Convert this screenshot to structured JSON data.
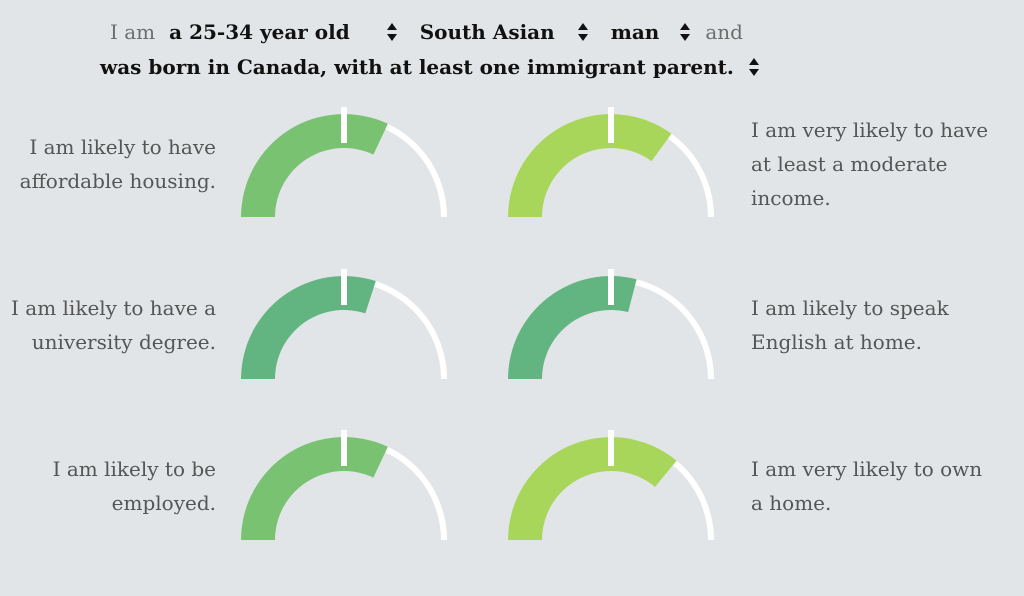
{
  "header": {
    "prefix": "I am",
    "age_select": "a 25-34 year old",
    "ethnicity_select": "South Asian",
    "gender_select": "man",
    "conjunction": "and",
    "birth_select": "was born in Canada, with at least one immigrant parent."
  },
  "gauges": [
    {
      "id": "housing",
      "statement_lines": [
        "I am likely to have",
        "affordable housing."
      ],
      "value": 0.64,
      "color": "#78c272",
      "side": "left"
    },
    {
      "id": "income",
      "statement_lines": [
        "I am very likely to have",
        "at least a moderate",
        "income."
      ],
      "value": 0.7,
      "color": "#a8d65a",
      "side": "right"
    },
    {
      "id": "university",
      "statement_lines": [
        "I am likely to have a",
        "university degree."
      ],
      "value": 0.6,
      "color": "#62b581",
      "side": "left"
    },
    {
      "id": "english",
      "statement_lines": [
        "I am likely to speak",
        "English at home."
      ],
      "value": 0.58,
      "color": "#62b581",
      "side": "right"
    },
    {
      "id": "employed",
      "statement_lines": [
        "I am likely to be",
        "employed."
      ],
      "value": 0.64,
      "color": "#78c272",
      "side": "left"
    },
    {
      "id": "home",
      "statement_lines": [
        "I am very likely to own",
        "a home."
      ],
      "value": 0.72,
      "color": "#a8d65a",
      "side": "right"
    }
  ]
}
